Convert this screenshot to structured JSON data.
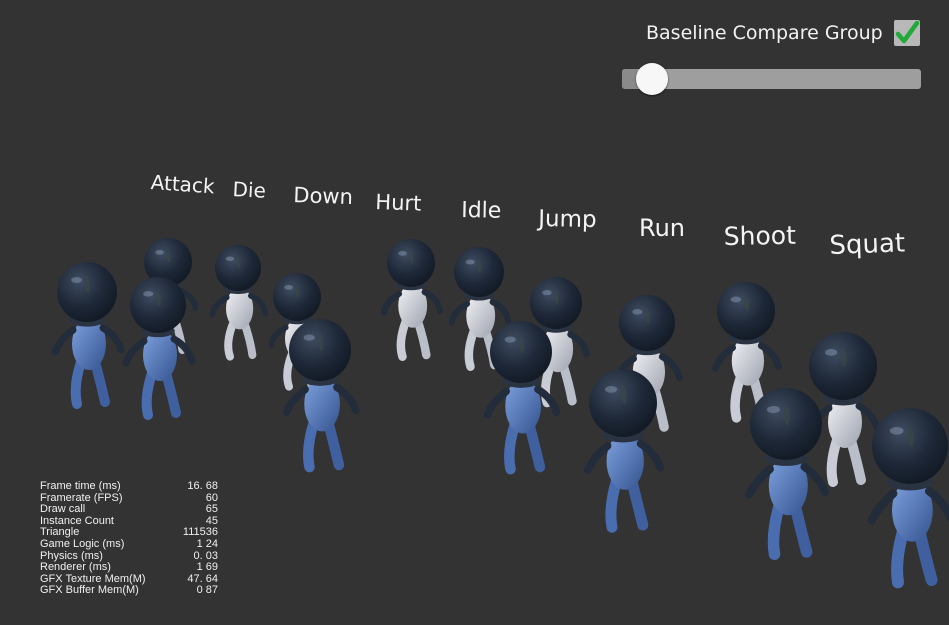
{
  "compare": {
    "label": "Baseline Compare Group",
    "checked": true
  },
  "slider": {
    "value": 0.05
  },
  "animations": [
    "Attack",
    "Die",
    "Down",
    "Hurt",
    "Idle",
    "Jump",
    "Run",
    "Shoot",
    "Squat"
  ],
  "stats": [
    {
      "name": "Frame time (ms)",
      "value": "16. 68"
    },
    {
      "name": "Framerate (FPS)",
      "value": "60"
    },
    {
      "name": "Draw call",
      "value": "65"
    },
    {
      "name": "Instance Count",
      "value": "45"
    },
    {
      "name": "Triangle",
      "value": "111536"
    },
    {
      "name": "Game Logic (ms)",
      "value": "1 24"
    },
    {
      "name": "Physics (ms)",
      "value": "0. 03"
    },
    {
      "name": "Renderer (ms)",
      "value": "1 69"
    },
    {
      "name": "GFX Texture Mem(M)",
      "value": "47. 64"
    },
    {
      "name": "GFX Buffer Mem(M)",
      "value": "0 87"
    }
  ],
  "colors": {
    "background": "#333333",
    "helmet": "#1f2a3a",
    "suit_white": "#e6e8ee",
    "suit_blue": "#5f86c9",
    "checkmark": "#1faa3a"
  }
}
